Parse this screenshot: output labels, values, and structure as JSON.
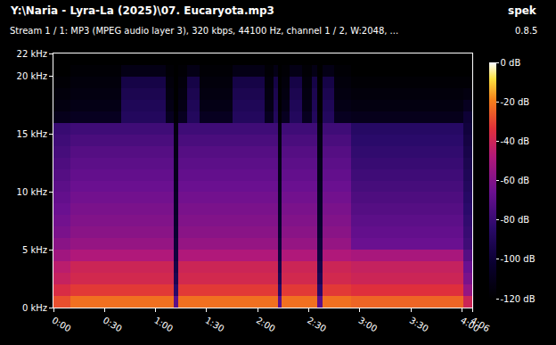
{
  "chart_data": {
    "type": "heatmap",
    "title": "Y:\\Naria - Lyra-La (2025)\\07. Eucaryota.mp3",
    "subtitle": "Stream 1 / 1: MP3 (MPEG audio layer 3), 320 kbps, 44100 Hz, channel 1 / 2, W:2048, ...",
    "annotations": [
      "spek",
      "0.8.5"
    ],
    "x": [
      5,
      15,
      25,
      35,
      45,
      55,
      63,
      69,
      72,
      75,
      82,
      90,
      100,
      110,
      120,
      128,
      131,
      133,
      135,
      142,
      150,
      154,
      156,
      160,
      170,
      180,
      190,
      200,
      210,
      220,
      230,
      238,
      244
    ],
    "y": [
      0.5,
      1.5,
      2.5,
      3.5,
      4.5,
      5.5,
      6.5,
      7.5,
      8.5,
      9.5,
      10.5,
      11.5,
      12.5,
      13.5,
      14.5,
      15.5,
      16.5,
      17.5,
      18.5,
      19.5,
      20.5,
      21.5
    ],
    "z": [
      [
        -28,
        -36,
        -42,
        -45,
        -52,
        -58,
        -62,
        -64,
        -66,
        -68,
        -70,
        -72,
        -74,
        -76,
        -78,
        -80,
        -110,
        -114,
        -116,
        -118,
        -120,
        -120
      ],
      [
        -22,
        -32,
        -38,
        -40,
        -48,
        -55,
        -58,
        -60,
        -62,
        -64,
        -66,
        -68,
        -70,
        -72,
        -75,
        -78,
        -108,
        -112,
        -114,
        -116,
        -118,
        -120
      ],
      [
        -22,
        -32,
        -38,
        -40,
        -48,
        -55,
        -58,
        -60,
        -62,
        -64,
        -66,
        -68,
        -70,
        -72,
        -75,
        -78,
        -108,
        -112,
        -114,
        -116,
        -118,
        -120
      ],
      [
        -22,
        -32,
        -38,
        -40,
        -48,
        -55,
        -58,
        -60,
        -62,
        -64,
        -66,
        -68,
        -70,
        -72,
        -75,
        -78,
        -108,
        -112,
        -114,
        -116,
        -118,
        -120
      ],
      [
        -22,
        -32,
        -38,
        -40,
        -48,
        -55,
        -58,
        -60,
        -62,
        -64,
        -66,
        -68,
        -70,
        -72,
        -75,
        -78,
        -88,
        -90,
        -92,
        -95,
        -112,
        -120
      ],
      [
        -22,
        -32,
        -38,
        -40,
        -48,
        -55,
        -58,
        -60,
        -62,
        -64,
        -66,
        -68,
        -70,
        -72,
        -75,
        -78,
        -88,
        -90,
        -92,
        -95,
        -112,
        -120
      ],
      [
        -22,
        -32,
        -38,
        -40,
        -48,
        -55,
        -58,
        -60,
        -62,
        -64,
        -66,
        -68,
        -70,
        -72,
        -75,
        -78,
        -88,
        -90,
        -92,
        -95,
        -112,
        -120
      ],
      [
        -22,
        -32,
        -38,
        -40,
        -48,
        -55,
        -58,
        -60,
        -62,
        -64,
        -66,
        -68,
        -70,
        -72,
        -75,
        -78,
        -108,
        -112,
        -114,
        -116,
        -118,
        -120
      ],
      [
        -70,
        -85,
        -92,
        -95,
        -98,
        -100,
        -102,
        -104,
        -105,
        -106,
        -108,
        -110,
        -110,
        -112,
        -112,
        -114,
        -118,
        -120,
        -120,
        -120,
        -120,
        -120
      ],
      [
        -22,
        -32,
        -38,
        -40,
        -48,
        -55,
        -58,
        -60,
        -62,
        -64,
        -66,
        -68,
        -70,
        -72,
        -75,
        -78,
        -108,
        -112,
        -114,
        -116,
        -118,
        -120
      ],
      [
        -22,
        -32,
        -38,
        -40,
        -48,
        -55,
        -58,
        -60,
        -62,
        -64,
        -66,
        -68,
        -70,
        -72,
        -75,
        -78,
        -88,
        -90,
        -92,
        -95,
        -112,
        -120
      ],
      [
        -22,
        -32,
        -38,
        -40,
        -48,
        -55,
        -58,
        -60,
        -62,
        -64,
        -66,
        -68,
        -70,
        -72,
        -75,
        -78,
        -108,
        -112,
        -114,
        -116,
        -118,
        -120
      ],
      [
        -22,
        -32,
        -38,
        -40,
        -48,
        -55,
        -58,
        -60,
        -62,
        -64,
        -66,
        -68,
        -70,
        -72,
        -75,
        -78,
        -108,
        -112,
        -114,
        -116,
        -118,
        -120
      ],
      [
        -22,
        -32,
        -38,
        -40,
        -48,
        -55,
        -58,
        -60,
        -62,
        -64,
        -66,
        -68,
        -70,
        -72,
        -75,
        -78,
        -88,
        -90,
        -92,
        -95,
        -112,
        -120
      ],
      [
        -22,
        -32,
        -38,
        -40,
        -48,
        -55,
        -58,
        -60,
        -62,
        -64,
        -66,
        -68,
        -70,
        -72,
        -75,
        -78,
        -88,
        -90,
        -92,
        -95,
        -112,
        -120
      ],
      [
        -22,
        -32,
        -38,
        -40,
        -48,
        -55,
        -58,
        -60,
        -62,
        -64,
        -66,
        -68,
        -70,
        -72,
        -75,
        -78,
        -108,
        -112,
        -114,
        -116,
        -118,
        -120
      ],
      [
        -22,
        -32,
        -38,
        -40,
        -48,
        -55,
        -58,
        -60,
        -62,
        -64,
        -66,
        -68,
        -70,
        -72,
        -75,
        -78,
        -88,
        -90,
        -92,
        -95,
        -112,
        -120
      ],
      [
        -70,
        -85,
        -92,
        -95,
        -98,
        -100,
        -102,
        -104,
        -105,
        -106,
        -108,
        -110,
        -110,
        -112,
        -112,
        -114,
        -118,
        -120,
        -120,
        -120,
        -120,
        -120
      ],
      [
        -22,
        -32,
        -38,
        -40,
        -48,
        -55,
        -58,
        -60,
        -62,
        -64,
        -66,
        -68,
        -70,
        -72,
        -75,
        -78,
        -108,
        -112,
        -114,
        -116,
        -118,
        -120
      ],
      [
        -22,
        -32,
        -38,
        -40,
        -48,
        -55,
        -58,
        -60,
        -62,
        -64,
        -66,
        -68,
        -70,
        -72,
        -75,
        -78,
        -88,
        -90,
        -92,
        -95,
        -112,
        -120
      ],
      [
        -22,
        -32,
        -38,
        -40,
        -48,
        -55,
        -58,
        -60,
        -62,
        -64,
        -66,
        -68,
        -70,
        -72,
        -75,
        -78,
        -108,
        -112,
        -114,
        -116,
        -118,
        -120
      ],
      [
        -22,
        -32,
        -38,
        -40,
        -48,
        -55,
        -58,
        -60,
        -62,
        -64,
        -66,
        -68,
        -70,
        -72,
        -75,
        -78,
        -88,
        -90,
        -92,
        -95,
        -112,
        -120
      ],
      [
        -70,
        -85,
        -92,
        -95,
        -98,
        -100,
        -102,
        -104,
        -105,
        -106,
        -108,
        -110,
        -110,
        -112,
        -112,
        -114,
        -118,
        -120,
        -120,
        -120,
        -120,
        -120
      ],
      [
        -22,
        -32,
        -38,
        -40,
        -48,
        -55,
        -58,
        -60,
        -62,
        -64,
        -66,
        -68,
        -70,
        -72,
        -75,
        -78,
        -88,
        -90,
        -92,
        -95,
        -112,
        -120
      ],
      [
        -22,
        -32,
        -38,
        -40,
        -48,
        -55,
        -58,
        -60,
        -62,
        -64,
        -66,
        -68,
        -70,
        -72,
        -75,
        -78,
        -108,
        -112,
        -114,
        -116,
        -118,
        -120
      ],
      [
        -24,
        -34,
        -40,
        -42,
        -50,
        -66,
        -68,
        -70,
        -72,
        -74,
        -76,
        -78,
        -80,
        -82,
        -84,
        -86,
        -110,
        -114,
        -116,
        -118,
        -120,
        -120
      ],
      [
        -24,
        -34,
        -40,
        -42,
        -50,
        -66,
        -68,
        -70,
        -72,
        -74,
        -76,
        -78,
        -80,
        -82,
        -84,
        -86,
        -110,
        -114,
        -116,
        -118,
        -120,
        -120
      ],
      [
        -24,
        -34,
        -40,
        -42,
        -50,
        -66,
        -68,
        -70,
        -72,
        -74,
        -76,
        -78,
        -80,
        -82,
        -84,
        -86,
        -110,
        -114,
        -116,
        -118,
        -120,
        -120
      ],
      [
        -24,
        -34,
        -40,
        -42,
        -50,
        -66,
        -68,
        -70,
        -72,
        -74,
        -76,
        -78,
        -80,
        -82,
        -84,
        -86,
        -110,
        -114,
        -116,
        -118,
        -120,
        -120
      ],
      [
        -24,
        -34,
        -40,
        -42,
        -50,
        -66,
        -68,
        -70,
        -72,
        -74,
        -76,
        -78,
        -80,
        -82,
        -84,
        -86,
        -110,
        -114,
        -116,
        -118,
        -120,
        -120
      ],
      [
        -24,
        -34,
        -40,
        -42,
        -50,
        -66,
        -68,
        -70,
        -72,
        -74,
        -76,
        -78,
        -80,
        -82,
        -84,
        -86,
        -110,
        -114,
        -116,
        -118,
        -120,
        -120
      ],
      [
        -24,
        -34,
        -40,
        -42,
        -50,
        -66,
        -68,
        -70,
        -72,
        -74,
        -76,
        -78,
        -80,
        -82,
        -84,
        -86,
        -110,
        -114,
        -116,
        -118,
        -120,
        -120
      ],
      [
        -40,
        -55,
        -62,
        -66,
        -72,
        -78,
        -80,
        -82,
        -84,
        -86,
        -88,
        -90,
        -92,
        -94,
        -96,
        -98,
        -100,
        -108,
        -114,
        -118,
        -120,
        -120
      ]
    ],
    "xlim": [
      0,
      246
    ],
    "xticks": [
      {
        "value": 0,
        "label": "0:00"
      },
      {
        "value": 30,
        "label": "0:30"
      },
      {
        "value": 60,
        "label": "1:00"
      },
      {
        "value": 90,
        "label": "1:30"
      },
      {
        "value": 120,
        "label": "2:00"
      },
      {
        "value": 150,
        "label": "2:30"
      },
      {
        "value": 180,
        "label": "3:00"
      },
      {
        "value": 210,
        "label": "3:30"
      },
      {
        "value": 240,
        "label": "4:00"
      },
      {
        "value": 246,
        "label": "4:06"
      }
    ],
    "ylim": [
      0,
      22
    ],
    "yticks": [
      {
        "value": 0,
        "label": "0 kHz"
      },
      {
        "value": 5,
        "label": "5 kHz"
      },
      {
        "value": 10,
        "label": "10 kHz"
      },
      {
        "value": 15,
        "label": "15 kHz"
      },
      {
        "value": 20,
        "label": "20 kHz"
      },
      {
        "value": 22,
        "label": "22 kHz"
      }
    ],
    "zlim": [
      -120,
      0
    ],
    "zticks": [
      {
        "value": 0,
        "label": "0 dB"
      },
      {
        "value": -20,
        "label": "-20 dB"
      },
      {
        "value": -40,
        "label": "-40 dB"
      },
      {
        "value": -60,
        "label": "-60 dB"
      },
      {
        "value": -80,
        "label": "-80 dB"
      },
      {
        "value": -100,
        "label": "-100 dB"
      },
      {
        "value": -120,
        "label": "-120 dB"
      }
    ]
  }
}
